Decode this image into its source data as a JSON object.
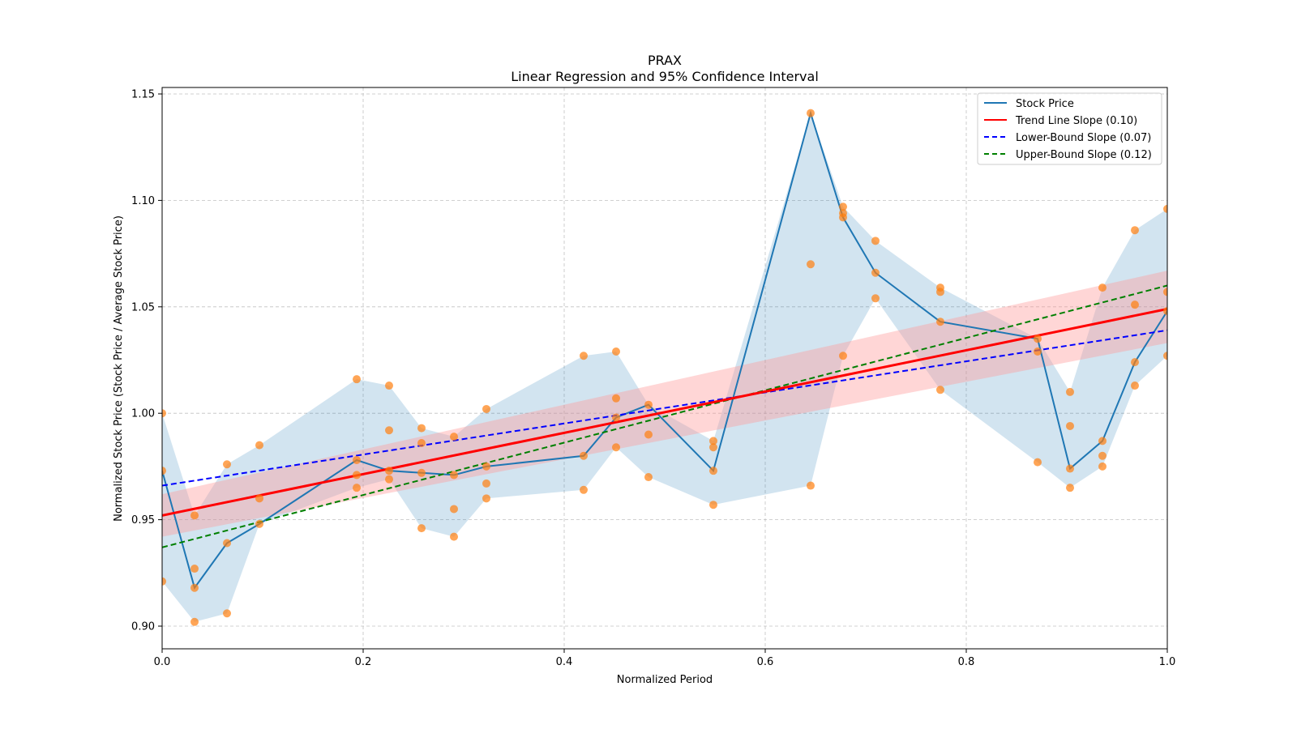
{
  "chart_data": {
    "type": "scatter",
    "title": "PRAX",
    "subtitle": "Linear Regression and 95% Confidence Interval",
    "xlabel": "Normalized Period",
    "ylabel": "Normalized Stock Price (Stock Price / Average Stock Price)",
    "xlim": [
      0.0,
      1.0
    ],
    "ylim": [
      0.89,
      1.152
    ],
    "xticks": [
      0.0,
      0.2,
      0.4,
      0.6,
      0.8,
      1.0
    ],
    "xtick_labels": [
      "0.0",
      "0.2",
      "0.4",
      "0.6",
      "0.8",
      "1.0"
    ],
    "yticks": [
      0.9,
      0.95,
      1.0,
      1.05,
      1.1,
      1.15
    ],
    "ytick_labels": [
      "0.90",
      "0.95",
      "1.00",
      "1.05",
      "1.10",
      "1.15"
    ],
    "grid": true,
    "legend_position": "top-right",
    "legend": [
      {
        "label": "Stock Price",
        "color": "#1f77b4",
        "style": "solid"
      },
      {
        "label": "Trend Line Slope (0.10)",
        "color": "#ff0000",
        "style": "solid"
      },
      {
        "label": "Lower-Bound Slope (0.07)",
        "color": "#0000ff",
        "style": "dashed"
      },
      {
        "label": "Upper-Bound Slope (0.12)",
        "color": "#008000",
        "style": "dashed"
      }
    ],
    "colors": {
      "stock_line": "#1f77b4",
      "range_fill": "#1f77b4",
      "scatter": "#ff7f0e",
      "trend": "#ff0000",
      "ci_fill": "#ff9999",
      "lower": "#0000ff",
      "upper": "#008000"
    },
    "period_count": 31,
    "observations": [
      {
        "period": 0,
        "close": 0.973,
        "values": [
          1.0,
          0.973,
          0.921
        ]
      },
      {
        "period": 1,
        "close": 0.918,
        "values": [
          0.952,
          0.927,
          0.918,
          0.902
        ]
      },
      {
        "period": 2,
        "close": 0.939,
        "values": [
          0.976,
          0.939,
          0.906
        ]
      },
      {
        "period": 3,
        "close": 0.948,
        "values": [
          0.985,
          0.96,
          0.948
        ]
      },
      {
        "period": 6,
        "close": 0.978,
        "values": [
          1.016,
          0.978,
          0.971,
          0.965
        ]
      },
      {
        "period": 7,
        "close": 0.973,
        "values": [
          1.013,
          0.992,
          0.973,
          0.969
        ]
      },
      {
        "period": 8,
        "close": 0.972,
        "values": [
          0.993,
          0.986,
          0.972,
          0.946
        ]
      },
      {
        "period": 9,
        "close": 0.971,
        "values": [
          0.989,
          0.971,
          0.955,
          0.942
        ]
      },
      {
        "period": 10,
        "close": 0.975,
        "values": [
          1.002,
          0.975,
          0.967,
          0.96
        ]
      },
      {
        "period": 13,
        "close": 0.98,
        "values": [
          1.027,
          0.98,
          0.964
        ]
      },
      {
        "period": 14,
        "close": 0.998,
        "values": [
          1.029,
          1.007,
          0.998,
          0.984
        ]
      },
      {
        "period": 15,
        "close": 1.004,
        "values": [
          1.004,
          0.99,
          0.97
        ]
      },
      {
        "period": 17,
        "close": 0.973,
        "values": [
          0.987,
          0.984,
          0.973,
          0.957
        ]
      },
      {
        "period": 20,
        "close": 1.141,
        "values": [
          1.141,
          1.07,
          0.966
        ]
      },
      {
        "period": 21,
        "close": 1.092,
        "values": [
          1.097,
          1.094,
          1.092,
          1.027
        ]
      },
      {
        "period": 22,
        "close": 1.066,
        "values": [
          1.081,
          1.066,
          1.054
        ]
      },
      {
        "period": 24,
        "close": 1.043,
        "values": [
          1.059,
          1.057,
          1.043,
          1.011
        ]
      },
      {
        "period": 27,
        "close": 1.035,
        "values": [
          1.035,
          1.029,
          0.977
        ]
      },
      {
        "period": 28,
        "close": 0.974,
        "values": [
          1.01,
          0.994,
          0.974,
          0.965
        ]
      },
      {
        "period": 29,
        "close": 0.987,
        "values": [
          1.059,
          0.987,
          0.98,
          0.975
        ]
      },
      {
        "period": 30,
        "close": 1.024,
        "values": [
          1.086,
          1.051,
          1.024,
          1.013
        ]
      },
      {
        "period": 31,
        "close": 1.048,
        "values": [
          1.096,
          1.057,
          1.048,
          1.027
        ]
      }
    ],
    "trend_line": {
      "y_at_0": 0.952,
      "y_at_1": 1.049,
      "slope": 0.1
    },
    "ci_band": {
      "lower_at_0": 0.942,
      "upper_at_0": 0.962,
      "lower_at_1": 1.033,
      "upper_at_1": 1.067
    },
    "lower_bound_line": {
      "y_at_0": 0.966,
      "y_at_1": 1.039,
      "slope": 0.07
    },
    "upper_bound_line": {
      "y_at_0": 0.937,
      "y_at_1": 1.06,
      "slope": 0.12
    }
  }
}
